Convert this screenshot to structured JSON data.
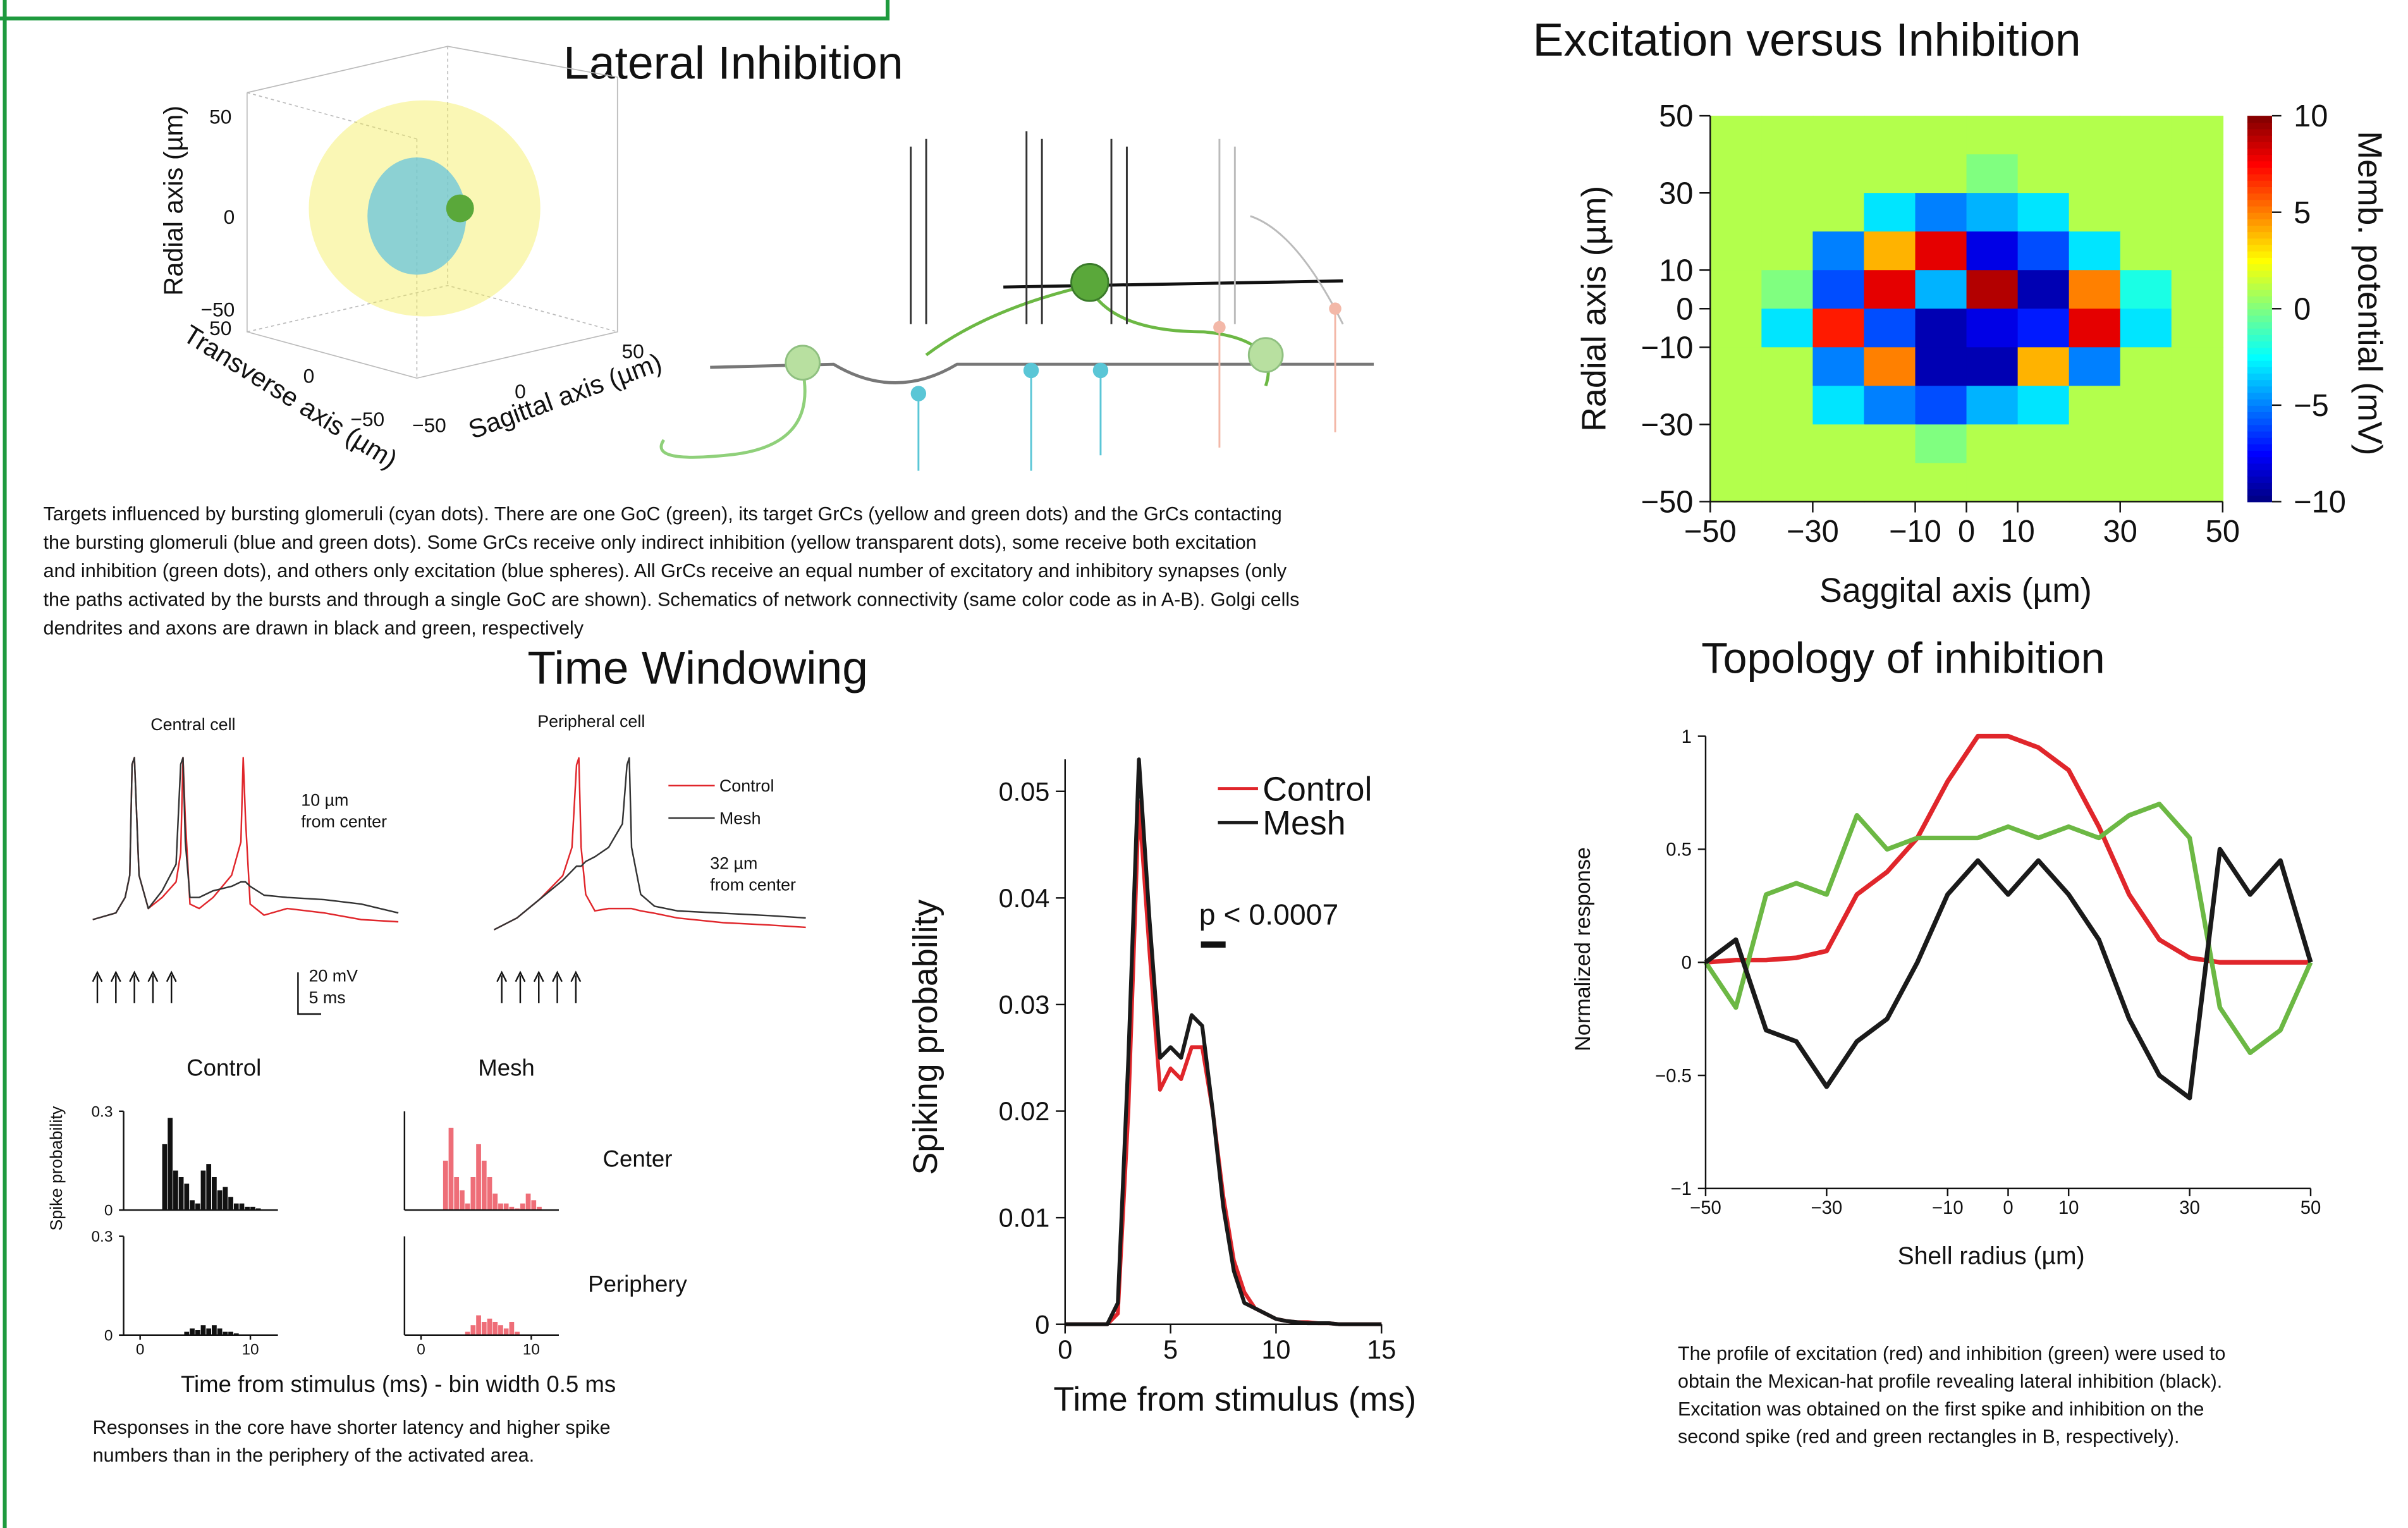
{
  "lateral_inhibition": {
    "title": "Lateral Inhibition",
    "plot3d": {
      "radial_label": "Radial axis (µm)",
      "transverse_label": "Transverse axis (µm)",
      "sagittal_label": "Sagittal axis (µm)",
      "radial_ticks": [
        "50",
        "0",
        "−50"
      ],
      "transverse_ticks": [
        "50",
        "0",
        "−50"
      ],
      "sagittal_ticks": [
        "50",
        "0",
        "−50"
      ]
    },
    "caption": [
      "Targets influenced by bursting glomeruli (cyan dots). There are one GoC (green), its target GrCs (yellow and green dots) and the GrCs contacting",
      "the bursting glomeruli (blue and green dots). Some GrCs receive only indirect inhibition (yellow transparent dots), some receive both excitation",
      "and inhibition (green dots), and others only excitation (blue spheres). All GrCs receive an equal number of excitatory and inhibitory synapses (only",
      "the paths activated by the bursts and through a single GoC are shown). Schematics of network connectivity (same color code as in A-B). Golgi cells",
      "dendrites and axons are drawn in black and green, respectively"
    ]
  },
  "time_windowing": {
    "title": "Time Windowing",
    "center_label": "Center",
    "periphery_label": "Periphery",
    "hist_ylabel": "Spike probability",
    "hist_xlabel": "Time from stimulus (ms) - bin width 0.5 ms",
    "scale_mv": "20 mV",
    "scale_ms": "5 ms",
    "caption": [
      "Responses in the core have shorter latency and higher spike",
      "numbers than in the periphery of the activated area."
    ]
  },
  "topology_caption": [
    "The profile of excitation (red) and inhibition (green) were used to",
    "obtain the Mexican-hat profile revealing lateral inhibition (black).",
    "Excitation was obtained on the first spike and inhibition on the",
    "second spike (red and green rectangles in B, respectively)."
  ],
  "chart_data": [
    {
      "type": "heatmap",
      "title": "Excitation versus Inhibition",
      "xlabel": "Saggital axis (µm)",
      "ylabel": "Radial axis (µm)",
      "x": [
        -45,
        -35,
        -25,
        -15,
        -5,
        5,
        15,
        25,
        35,
        45
      ],
      "y": [
        45,
        35,
        25,
        15,
        5,
        -5,
        -15,
        -25,
        -35,
        -45
      ],
      "z": [
        [
          1,
          1,
          1,
          1,
          1,
          1,
          1,
          1,
          1,
          1
        ],
        [
          1,
          1,
          1,
          1,
          1,
          0,
          1,
          1,
          1,
          1
        ],
        [
          1,
          1,
          1,
          -3,
          -5,
          -4,
          -3,
          1,
          1,
          1
        ],
        [
          1,
          1,
          -5,
          4,
          8,
          -8,
          -6,
          -3,
          1,
          1
        ],
        [
          1,
          0,
          -6,
          8,
          -4,
          9,
          -9,
          5,
          -2,
          1
        ],
        [
          1,
          -3,
          7,
          -6,
          -9,
          -8,
          -7,
          8,
          -3,
          1
        ],
        [
          1,
          1,
          -5,
          5,
          -9,
          -9,
          4,
          -5,
          1,
          1
        ],
        [
          1,
          1,
          -3,
          -5,
          -6,
          -4,
          -3,
          1,
          1,
          1
        ],
        [
          1,
          1,
          1,
          1,
          0,
          1,
          1,
          1,
          1,
          1
        ],
        [
          1,
          1,
          1,
          1,
          1,
          1,
          1,
          1,
          1,
          1
        ]
      ],
      "xlim": [
        -50,
        50
      ],
      "ylim": [
        -50,
        50
      ],
      "xticks": [
        {
          "value": -50,
          "label": "−50"
        },
        {
          "value": -30,
          "label": "−30"
        },
        {
          "value": -10,
          "label": "−10"
        },
        0,
        10,
        30,
        50
      ],
      "yticks": [
        {
          "value": -50,
          "label": "−50"
        },
        {
          "value": -30,
          "label": "−30"
        },
        {
          "value": -10,
          "label": "−10"
        },
        0,
        10,
        30,
        50
      ],
      "colorbar": {
        "label": "Memb. potential (mV)",
        "lim": [
          -10,
          10
        ],
        "ticks": [
          {
            "value": -10,
            "label": "−10"
          },
          {
            "value": -5,
            "label": "−5"
          },
          0,
          5,
          10
        ]
      }
    },
    {
      "type": "line",
      "title": "Topology of inhibition",
      "xlabel": "Shell radius (µm)",
      "ylabel": "Normalized response",
      "x": [
        -50,
        -45,
        -40,
        -35,
        -30,
        -25,
        -20,
        -15,
        -10,
        -5,
        0,
        5,
        10,
        15,
        20,
        25,
        30,
        35,
        40,
        45,
        50
      ],
      "series": [
        {
          "color": "#e0262b",
          "values": [
            0,
            0.01,
            0.01,
            0.02,
            0.05,
            0.3,
            0.4,
            0.55,
            0.8,
            1,
            1,
            0.95,
            0.85,
            0.6,
            0.3,
            0.1,
            0.02,
            0,
            0,
            0,
            0
          ]
        },
        {
          "color": "#6cb844",
          "values": [
            0,
            -0.2,
            0.3,
            0.35,
            0.3,
            0.65,
            0.5,
            0.55,
            0.55,
            0.55,
            0.6,
            0.55,
            0.6,
            0.55,
            0.65,
            0.7,
            0.55,
            -0.2,
            -0.4,
            -0.3,
            0
          ]
        },
        {
          "color": "#1a1a1a",
          "values": [
            0,
            0.1,
            -0.3,
            -0.35,
            -0.55,
            -0.35,
            -0.25,
            0,
            0.3,
            0.45,
            0.3,
            0.45,
            0.3,
            0.1,
            -0.25,
            -0.5,
            -0.6,
            0.5,
            0.3,
            0.45,
            0
          ]
        }
      ],
      "xlim": [
        -50,
        50
      ],
      "ylim": [
        -1,
        1
      ],
      "xticks": [
        {
          "value": -50,
          "label": "−50"
        },
        {
          "value": -30,
          "label": "−30"
        },
        {
          "value": -10,
          "label": "−10"
        },
        0,
        10,
        30,
        50
      ],
      "yticks": [
        {
          "value": -1,
          "label": "−1"
        },
        {
          "value": -0.5,
          "label": "−0.5"
        },
        0,
        0.5,
        1
      ]
    },
    {
      "type": "line",
      "xlabel": "Time from stimulus (ms)",
      "ylabel": "Spiking probability",
      "annotation": "p < 0.0007",
      "x": [
        0,
        0.5,
        1,
        1.5,
        2,
        2.5,
        3,
        3.5,
        4,
        4.5,
        5,
        5.5,
        6,
        6.5,
        7,
        7.5,
        8,
        8.5,
        9,
        9.5,
        10,
        10.5,
        11,
        11.5,
        12,
        12.5,
        13,
        13.5,
        14,
        14.5,
        15
      ],
      "series": [
        {
          "name": "Control",
          "color": "#e0262b",
          "values": [
            0,
            0,
            0,
            0,
            0,
            0.001,
            0.02,
            0.049,
            0.035,
            0.022,
            0.024,
            0.023,
            0.026,
            0.026,
            0.02,
            0.012,
            0.006,
            0.003,
            0.0015,
            0.001,
            0.0005,
            0.0003,
            0.0002,
            0.0002,
            0.0001,
            0.0001,
            0,
            0,
            0,
            0,
            0
          ]
        },
        {
          "name": "Mesh",
          "color": "#1a1a1a",
          "values": [
            0,
            0,
            0,
            0,
            0,
            0.002,
            0.025,
            0.053,
            0.038,
            0.025,
            0.026,
            0.025,
            0.029,
            0.028,
            0.02,
            0.011,
            0.005,
            0.002,
            0.0015,
            0.001,
            0.0005,
            0.0003,
            0.0002,
            0.0001,
            0.0001,
            0.0001,
            0,
            0,
            0,
            0,
            0
          ]
        }
      ],
      "xlim": [
        0,
        15
      ],
      "ylim": [
        0,
        0.053
      ],
      "xticks": [
        0,
        5,
        10,
        15
      ],
      "yticks": [
        0,
        0.01,
        0.02,
        0.03,
        0.04,
        0.05
      ]
    },
    {
      "type": "histogram",
      "title": "Control",
      "color": "#111111",
      "bins": [
        2,
        2.5,
        3,
        3.5,
        4,
        4.5,
        5,
        5.5,
        6,
        6.5,
        7,
        7.5,
        8,
        8.5,
        9,
        9.5,
        10,
        10.5,
        11
      ],
      "values": [
        0.2,
        0.28,
        0.12,
        0.1,
        0.08,
        0.03,
        0.02,
        0.12,
        0.14,
        0.1,
        0.06,
        0.07,
        0.04,
        0.02,
        0.02,
        0.01,
        0.01,
        0.005
      ],
      "xlim": [
        -1.5,
        12.5
      ],
      "ylim": [
        0,
        0.3
      ],
      "yticks": [
        0,
        0.3
      ]
    },
    {
      "type": "histogram",
      "title": "Mesh",
      "color": "#ee6e78",
      "bins": [
        2,
        2.5,
        3,
        3.5,
        4,
        4.5,
        5,
        5.5,
        6,
        6.5,
        7,
        7.5,
        8,
        8.5,
        9,
        9.5,
        10,
        10.5,
        11
      ],
      "values": [
        0.15,
        0.25,
        0.1,
        0.06,
        0.02,
        0.1,
        0.2,
        0.15,
        0.1,
        0.05,
        0.02,
        0.02,
        0.01,
        0.005,
        0.02,
        0.05,
        0.03,
        0.01
      ],
      "xlim": [
        -1.5,
        12.5
      ],
      "ylim": [
        0,
        0.3
      ]
    },
    {
      "type": "histogram",
      "color": "#111111",
      "bins": [
        2,
        2.5,
        3,
        3.5,
        4,
        4.5,
        5,
        5.5,
        6,
        6.5,
        7,
        7.5,
        8,
        8.5,
        9,
        9.5,
        10,
        10.5,
        11
      ],
      "values": [
        0,
        0,
        0,
        0,
        0.01,
        0.02,
        0.015,
        0.03,
        0.02,
        0.03,
        0.02,
        0.01,
        0.01,
        0.005,
        0,
        0,
        0,
        0
      ],
      "xlim": [
        -1.5,
        12.5
      ],
      "ylim": [
        0,
        0.3
      ],
      "xticks": [
        0,
        10
      ],
      "yticks": [
        0,
        0.3
      ]
    },
    {
      "type": "histogram",
      "color": "#ee6e78",
      "bins": [
        2,
        2.5,
        3,
        3.5,
        4,
        4.5,
        5,
        5.5,
        6,
        6.5,
        7,
        7.5,
        8,
        8.5,
        9,
        9.5,
        10,
        10.5,
        11
      ],
      "values": [
        0,
        0,
        0,
        0,
        0.01,
        0.03,
        0.06,
        0.04,
        0.05,
        0.04,
        0.03,
        0.02,
        0.04,
        0.01,
        0,
        0,
        0,
        0
      ],
      "xlim": [
        -1.5,
        12.5
      ],
      "ylim": [
        0,
        0.3
      ],
      "xticks": [
        0,
        10
      ]
    },
    {
      "type": "line",
      "title": "Central cell",
      "annotation": [
        "10 µm",
        "from center"
      ],
      "x": [
        0,
        5,
        7,
        8,
        8.5,
        9,
        10,
        12,
        15,
        18,
        19,
        19.5,
        20,
        21,
        23,
        26,
        30,
        32,
        32.5,
        33,
        34,
        37,
        42,
        50,
        58,
        66
      ],
      "series": [
        {
          "color": "#e0262b",
          "values": [
            -65,
            -62,
            -55,
            -45,
            5,
            8,
            -45,
            -60,
            -55,
            -48,
            -35,
            8,
            -20,
            -58,
            -60,
            -55,
            -45,
            -30,
            8,
            -20,
            -58,
            -63,
            -60,
            -62,
            -65,
            -66
          ]
        },
        {
          "color": "#333333",
          "values": [
            -65,
            -62,
            -55,
            -45,
            5,
            8,
            -45,
            -60,
            -52,
            -40,
            5,
            8,
            -30,
            -55,
            -55,
            -52,
            -50,
            -48,
            -48,
            -48,
            -50,
            -54,
            -55,
            -56,
            -58,
            -62
          ]
        }
      ],
      "xlim": [
        0,
        66
      ],
      "ylim": [
        -70,
        10
      ]
    },
    {
      "type": "line",
      "title": "Peripheral cell",
      "annotation": [
        "32 µm",
        "from center"
      ],
      "x": [
        0,
        5,
        10,
        15,
        17,
        18,
        18.5,
        19,
        20,
        22,
        25,
        28,
        29,
        29.5,
        30,
        32,
        35,
        40,
        50,
        60,
        68
      ],
      "series": [
        {
          "name": "Control",
          "color": "#e0262b",
          "values": [
            -65,
            -60,
            -52,
            -42,
            -30,
            5,
            8,
            -30,
            -50,
            -57,
            -56,
            -56,
            -56,
            -56,
            -56,
            -57,
            -58,
            -60,
            -62,
            -63,
            -64
          ]
        },
        {
          "name": "Mesh",
          "color": "#333333",
          "values": [
            -65,
            -60,
            -52,
            -44,
            -40,
            -38,
            -38,
            -38,
            -36,
            -34,
            -30,
            -20,
            5,
            8,
            -30,
            -50,
            -55,
            -57,
            -58,
            -59,
            -60
          ]
        }
      ],
      "xlim": [
        0,
        68
      ],
      "ylim": [
        -70,
        10
      ]
    }
  ]
}
